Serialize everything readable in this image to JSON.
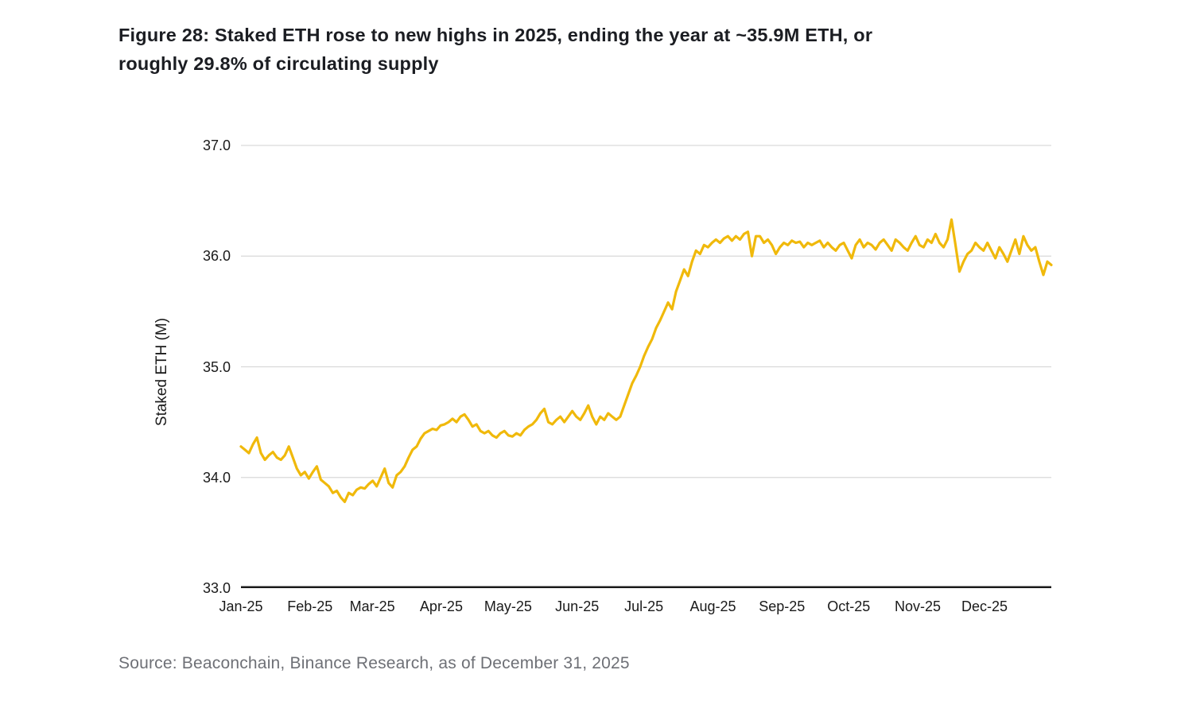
{
  "figure": {
    "title": "Figure 28: Staked ETH rose to new highs in 2025, ending the year at ~35.9M ETH, or roughly 29.8% of circulating supply",
    "title_line1": "Figure 28: Staked ETH rose to new highs in 2025, ending the year at ~35.9M ETH, or",
    "title_line2": "roughly 29.8% of circulating supply",
    "source": "Source: Beaconchain, Binance Research, as of December 31, 2025"
  },
  "chart_data": {
    "type": "line",
    "title": "Staked ETH rose to new highs in 2025",
    "xlabel": "",
    "ylabel": "Staked ETH (M)",
    "ylim": [
      33.0,
      37.0
    ],
    "yticks": [
      "33.0",
      "34.0",
      "35.0",
      "36.0",
      "37.0"
    ],
    "grid": "horizontal gridlines at 34.0, 35.0, 36.0, 37.0; black baseline at 33.0",
    "legend": "none",
    "x_tick_labels": [
      "Jan-25",
      "Feb-25",
      "Mar-25",
      "Apr-25",
      "May-25",
      "Jun-25",
      "Jul-25",
      "Aug-25",
      "Sep-25",
      "Oct-25",
      "Nov-25",
      "Dec-25"
    ],
    "month_start_days": [
      0,
      31,
      59,
      90,
      120,
      151,
      181,
      212,
      243,
      273,
      304,
      334
    ],
    "x_domain_days": [
      0,
      364
    ],
    "line_color": "#F0B90B",
    "gridline_color": "#d9d9d9",
    "axis_color": "#1a1a1a",
    "series": [
      {
        "name": "Staked ETH (M)",
        "sampling": "204 points evenly spaced Jan 1 - Dec 31, 2025 (values in millions of ETH, read from chart)",
        "values": [
          34.28,
          34.25,
          34.22,
          34.3,
          34.36,
          34.22,
          34.16,
          34.2,
          34.23,
          34.18,
          34.16,
          34.2,
          34.28,
          34.18,
          34.08,
          34.02,
          34.05,
          33.99,
          34.05,
          34.1,
          33.98,
          33.95,
          33.92,
          33.86,
          33.88,
          33.82,
          33.78,
          33.86,
          33.84,
          33.89,
          33.91,
          33.9,
          33.94,
          33.97,
          33.92,
          34.0,
          34.08,
          33.95,
          33.91,
          34.02,
          34.05,
          34.1,
          34.18,
          34.25,
          34.28,
          34.35,
          34.4,
          34.42,
          34.44,
          34.43,
          34.47,
          34.48,
          34.5,
          34.53,
          34.5,
          34.55,
          34.57,
          34.52,
          34.46,
          34.48,
          34.42,
          34.4,
          34.42,
          34.38,
          34.36,
          34.4,
          34.42,
          34.38,
          34.37,
          34.4,
          34.38,
          34.43,
          34.46,
          34.48,
          34.52,
          34.58,
          34.62,
          34.5,
          34.48,
          34.52,
          34.55,
          34.5,
          34.55,
          34.6,
          34.55,
          34.52,
          34.58,
          34.65,
          34.55,
          34.48,
          34.55,
          34.52,
          34.58,
          34.55,
          34.52,
          34.55,
          34.65,
          34.75,
          34.85,
          34.92,
          35.0,
          35.1,
          35.18,
          35.25,
          35.35,
          35.42,
          35.5,
          35.58,
          35.52,
          35.68,
          35.78,
          35.88,
          35.82,
          35.95,
          36.05,
          36.02,
          36.1,
          36.08,
          36.12,
          36.15,
          36.12,
          36.16,
          36.18,
          36.14,
          36.18,
          36.15,
          36.2,
          36.22,
          36.0,
          36.18,
          36.18,
          36.12,
          36.15,
          36.1,
          36.02,
          36.08,
          36.12,
          36.1,
          36.14,
          36.12,
          36.13,
          36.08,
          36.12,
          36.1,
          36.12,
          36.14,
          36.08,
          36.12,
          36.08,
          36.05,
          36.1,
          36.12,
          36.05,
          35.98,
          36.1,
          36.15,
          36.08,
          36.12,
          36.1,
          36.06,
          36.12,
          36.15,
          36.1,
          36.05,
          36.15,
          36.12,
          36.08,
          36.05,
          36.12,
          36.18,
          36.1,
          36.08,
          36.15,
          36.12,
          36.2,
          36.12,
          36.08,
          36.15,
          36.33,
          36.1,
          35.86,
          35.95,
          36.02,
          36.05,
          36.12,
          36.08,
          36.05,
          36.12,
          36.05,
          35.98,
          36.08,
          36.02,
          35.95,
          36.05,
          36.15,
          36.02,
          36.18,
          36.1,
          36.05,
          36.08,
          35.95,
          35.83,
          35.95,
          35.92
        ],
        "annotations": {
          "start_value": 34.28,
          "feb_mar_low": 33.78,
          "november_spike_high": 36.33,
          "november_post_spike_low": 35.86,
          "end_value": 35.9
        }
      }
    ]
  }
}
